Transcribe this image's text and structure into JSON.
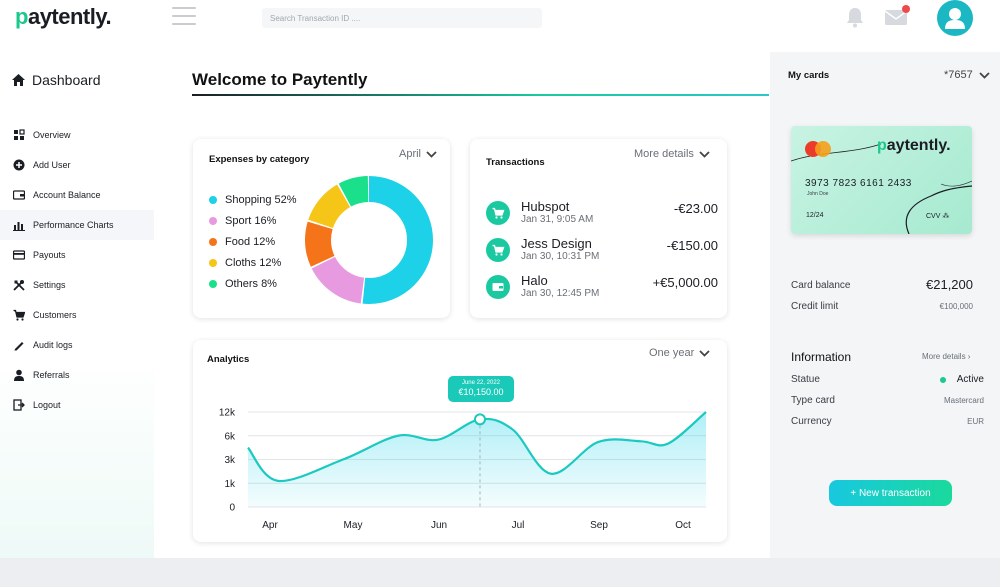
{
  "brand": {
    "logo_text": "paytently."
  },
  "search": {
    "placeholder": "Search Transaction ID ...."
  },
  "sidebar": {
    "dashboard_label": "Dashboard",
    "items": [
      {
        "label": "Overview",
        "icon": "overview-icon"
      },
      {
        "label": "Add User",
        "icon": "add-user-icon"
      },
      {
        "label": "Account Balance",
        "icon": "wallet-icon"
      },
      {
        "label": "Performance Charts",
        "icon": "bar-chart-icon"
      },
      {
        "label": "Payouts",
        "icon": "card-icon"
      },
      {
        "label": "Settings",
        "icon": "tools-icon"
      },
      {
        "label": "Customers",
        "icon": "cart-icon"
      },
      {
        "label": "Audit logs",
        "icon": "pencil-icon"
      },
      {
        "label": "Referrals",
        "icon": "person-icon"
      },
      {
        "label": "Logout",
        "icon": "logout-icon"
      }
    ]
  },
  "main": {
    "welcome": "Welcome to Paytently",
    "expenses": {
      "title": "Expenses by category",
      "period": "April",
      "categories": [
        {
          "label": "Shopping 52%",
          "value": 52,
          "color": "#1dd1e8"
        },
        {
          "label": "Sport 16%",
          "value": 16,
          "color": "#e89ae0"
        },
        {
          "label": "Food 12%",
          "value": 12,
          "color": "#f5741a"
        },
        {
          "label": "Cloths 12%",
          "value": 12,
          "color": "#f5c518"
        },
        {
          "label": "Others 8%",
          "value": 8,
          "color": "#1ae08c"
        }
      ]
    },
    "transactions": {
      "title": "Transactions",
      "more": "More details",
      "items": [
        {
          "name": "Hubspot",
          "date": "Jan 31, 9:05 AM",
          "amount": "-€23.00",
          "icon": "cart-icon"
        },
        {
          "name": "Jess Design",
          "date": "Jan 30, 10:31 PM",
          "amount": "-€150.00",
          "icon": "cart-icon"
        },
        {
          "name": "Halo",
          "date": "Jan 30, 12:45 PM",
          "amount": "+€5,000.00",
          "icon": "wallet-icon"
        }
      ]
    },
    "analytics": {
      "title": "Analytics",
      "period": "One year",
      "tooltip_date": "June 22, 2022",
      "tooltip_value": "€10,150.00"
    }
  },
  "chart_data": {
    "type": "area",
    "title": "Analytics",
    "x_labels": [
      "Apr",
      "May",
      "Jun",
      "Jul",
      "Sep",
      "Oct"
    ],
    "y_ticks": [
      "0",
      "1k",
      "3k",
      "6k",
      "12k"
    ],
    "series": [
      {
        "values": [
          {
            "x": "Apr",
            "y": 4.5
          },
          {
            "x": "Apr–May",
            "y": 1.2
          },
          {
            "x": "May",
            "y": 3.0
          },
          {
            "x": "May–Jun",
            "y": 6.0
          },
          {
            "x": "Jun",
            "y": 5.5
          },
          {
            "x": "Jun 22",
            "y": 10.15
          },
          {
            "x": "Jul",
            "y": 7.5
          },
          {
            "x": "Jul–Sep",
            "y": 1.8
          },
          {
            "x": "Sep",
            "y": 5.2
          },
          {
            "x": "Sep–Oct",
            "y": 5.3
          },
          {
            "x": "Oct",
            "y": 5.0
          },
          {
            "x": "Oct end",
            "y": 12.0
          }
        ]
      }
    ],
    "highlight": {
      "x": "Jun 22",
      "y": 10150
    },
    "grid": true
  },
  "right": {
    "my_cards": "My cards",
    "card_selector": "*7657",
    "card": {
      "brand": "paytently.",
      "number": "3973 7823 6161 2433",
      "holder": "John Doe",
      "expiry": "12/24",
      "cvv": "CVV ⁂"
    },
    "card_balance_label": "Card balance",
    "card_balance": "€21,200",
    "credit_limit_label": "Credit limit",
    "credit_limit": "€100,000",
    "info_title": "Information",
    "info_more": "More details ›",
    "status_label": "Statue",
    "status_value": "Active",
    "type_label": "Type card",
    "type_value": "Mastercard",
    "currency_label": "Currency",
    "currency_value": "EUR",
    "new_tx_button": "+ New transaction"
  },
  "colors": {
    "accent": "#1ac9a0",
    "accent_cyan": "#1dd1e8",
    "positive": "#1ac98c",
    "notification": "#ef4a4a"
  }
}
